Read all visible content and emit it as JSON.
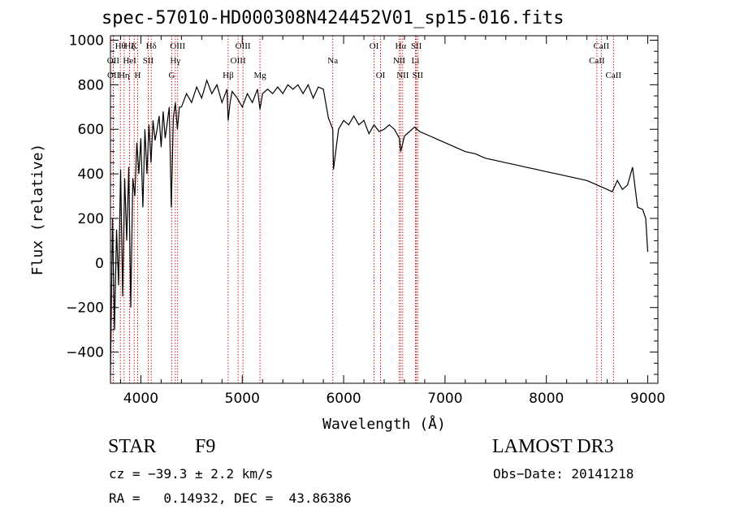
{
  "chart_data": {
    "type": "line",
    "title": "spec-57010-HD000308N424452V01_sp15-016.fits",
    "xlabel": "Wavelength (Å)",
    "ylabel": "Flux (relative)",
    "xlim": [
      3700,
      9100
    ],
    "ylim": [
      -540,
      1020
    ],
    "x_ticks": [
      4000,
      5000,
      6000,
      7000,
      8000,
      9000
    ],
    "y_ticks": [
      -400,
      -200,
      0,
      200,
      400,
      600,
      800,
      1000
    ],
    "series": [
      {
        "name": "flux",
        "x": [
          3700,
          3720,
          3740,
          3760,
          3780,
          3800,
          3820,
          3840,
          3860,
          3880,
          3900,
          3920,
          3940,
          3960,
          3980,
          4000,
          4020,
          4040,
          4060,
          4080,
          4100,
          4120,
          4140,
          4160,
          4180,
          4200,
          4220,
          4240,
          4260,
          4280,
          4300,
          4320,
          4340,
          4360,
          4380,
          4400,
          4450,
          4500,
          4550,
          4600,
          4650,
          4700,
          4750,
          4800,
          4850,
          4861,
          4880,
          4900,
          4950,
          5000,
          5050,
          5100,
          5150,
          5175,
          5200,
          5250,
          5300,
          5350,
          5400,
          5450,
          5500,
          5550,
          5600,
          5650,
          5700,
          5750,
          5800,
          5850,
          5893,
          5900,
          5950,
          6000,
          6050,
          6100,
          6150,
          6200,
          6250,
          6300,
          6350,
          6400,
          6450,
          6500,
          6550,
          6563,
          6600,
          6650,
          6700,
          6750,
          6800,
          6850,
          6900,
          6950,
          7000,
          7100,
          7200,
          7300,
          7400,
          7500,
          7600,
          7700,
          7800,
          7900,
          8000,
          8100,
          8200,
          8300,
          8400,
          8500,
          8550,
          8600,
          8650,
          8700,
          8750,
          8800,
          8850,
          8900,
          8950,
          8980,
          9000
        ],
        "values": [
          -500,
          200,
          -300,
          150,
          -100,
          420,
          -150,
          380,
          100,
          430,
          -200,
          380,
          300,
          540,
          400,
          560,
          250,
          600,
          400,
          620,
          450,
          640,
          550,
          600,
          660,
          520,
          680,
          560,
          630,
          700,
          250,
          650,
          720,
          600,
          700,
          700,
          760,
          720,
          790,
          740,
          820,
          760,
          800,
          720,
          780,
          640,
          720,
          770,
          740,
          700,
          760,
          720,
          780,
          690,
          760,
          780,
          760,
          790,
          760,
          800,
          780,
          800,
          760,
          800,
          740,
          790,
          780,
          650,
          600,
          420,
          600,
          640,
          620,
          660,
          620,
          640,
          580,
          620,
          590,
          600,
          620,
          600,
          560,
          500,
          570,
          590,
          610,
          590,
          580,
          570,
          560,
          550,
          540,
          520,
          500,
          490,
          470,
          460,
          450,
          440,
          430,
          420,
          410,
          400,
          390,
          380,
          370,
          350,
          340,
          330,
          320,
          370,
          330,
          350,
          430,
          250,
          240,
          200,
          50
        ]
      }
    ],
    "lines": [
      {
        "label": "Hθ",
        "wl": 3798,
        "row": 0
      },
      {
        "label": "OII",
        "wl": 3727,
        "row": 1
      },
      {
        "label": "OII",
        "wl": 3729,
        "row": 2
      },
      {
        "label": "Hη",
        "wl": 3835,
        "row": 2
      },
      {
        "label": "Hζ",
        "wl": 3889,
        "row": 0
      },
      {
        "label": "HeI",
        "wl": 3889,
        "row": 1
      },
      {
        "label": "K",
        "wl": 3934,
        "row": 0
      },
      {
        "label": "H",
        "wl": 3968,
        "row": 2
      },
      {
        "label": "Hδ",
        "wl": 4102,
        "row": 0
      },
      {
        "label": "SII",
        "wl": 4072,
        "row": 1
      },
      {
        "label": "OIII",
        "wl": 4363,
        "row": 0
      },
      {
        "label": "Hγ",
        "wl": 4340,
        "row": 1
      },
      {
        "label": "G",
        "wl": 4305,
        "row": 2
      },
      {
        "label": "Hβ",
        "wl": 4861,
        "row": 2
      },
      {
        "label": "OIII",
        "wl": 5007,
        "row": 0
      },
      {
        "label": "OIII",
        "wl": 4959,
        "row": 1
      },
      {
        "label": "Mg",
        "wl": 5175,
        "row": 2
      },
      {
        "label": "Na",
        "wl": 5893,
        "row": 1
      },
      {
        "label": "OI",
        "wl": 6300,
        "row": 0
      },
      {
        "label": "OI",
        "wl": 6364,
        "row": 2
      },
      {
        "label": "Hα",
        "wl": 6563,
        "row": 0
      },
      {
        "label": "NII",
        "wl": 6548,
        "row": 1
      },
      {
        "label": "NII",
        "wl": 6583,
        "row": 2
      },
      {
        "label": "SII",
        "wl": 6717,
        "row": 0
      },
      {
        "label": "Li",
        "wl": 6708,
        "row": 1
      },
      {
        "label": "SII",
        "wl": 6731,
        "row": 2
      },
      {
        "label": "CaII",
        "wl": 8542,
        "row": 0
      },
      {
        "label": "CaII",
        "wl": 8498,
        "row": 1
      },
      {
        "label": "CaII",
        "wl": 8662,
        "row": 2
      }
    ]
  },
  "info": {
    "object_class": "STAR",
    "subclass": "F9",
    "survey": "LAMOST DR3",
    "cz": "cz = −39.3 ± 2.2 km/s",
    "obs_date": "Obs−Date: 20141218",
    "radec": "RA =   0.14932, DEC =  43.86386"
  },
  "colors": {
    "line_marker": "#cc0000",
    "spectrum": "#000000"
  }
}
